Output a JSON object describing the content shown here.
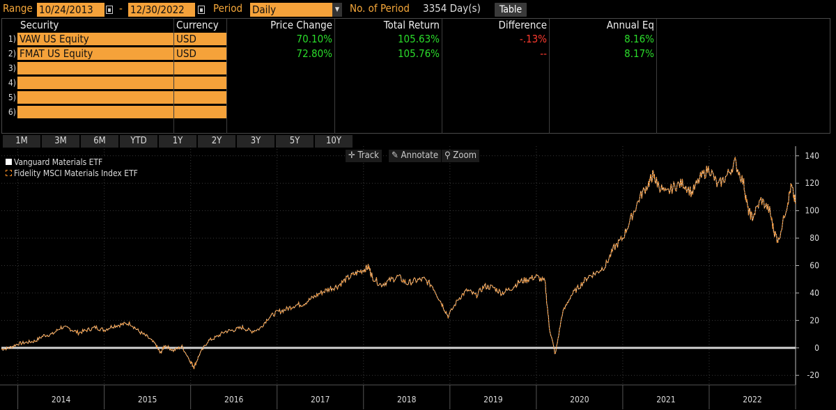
{
  "header": {
    "range_label": "Range",
    "start_date": "10/24/2013",
    "dash": "-",
    "end_date": "12/30/2022",
    "period_label": "Period",
    "period_value": "Daily",
    "num_period_label": "No. of Period",
    "num_period_value": "3354 Day(s)",
    "table_button": "Table"
  },
  "table": {
    "columns": [
      "Security",
      "Currency",
      "Price Change",
      "Total Return",
      "Difference",
      "Annual Eq"
    ],
    "rows": [
      {
        "num": "1)",
        "security": "VAW US Equity",
        "currency": "USD",
        "price_change": "70.10%",
        "total_return": "105.63%",
        "difference": "-.13%",
        "annual_eq": "8.16%"
      },
      {
        "num": "2)",
        "security": "FMAT US Equity",
        "currency": "USD",
        "price_change": "72.80%",
        "total_return": "105.76%",
        "difference": "--",
        "annual_eq": "8.17%"
      },
      {
        "num": "3)",
        "security": "",
        "currency": ""
      },
      {
        "num": "4)",
        "security": "",
        "currency": ""
      },
      {
        "num": "5)",
        "security": "",
        "currency": ""
      },
      {
        "num": "6)",
        "security": "",
        "currency": ""
      }
    ]
  },
  "periods": [
    "1M",
    "3M",
    "6M",
    "YTD",
    "1Y",
    "2Y",
    "3Y",
    "5Y",
    "10Y"
  ],
  "chart_toolbar": {
    "track": "Track",
    "track_icon": "crosshair-icon",
    "annotate": "Annotate",
    "annotate_icon": "pencil-icon",
    "zoom": "Zoom",
    "zoom_icon": "magnifier-icon"
  },
  "colors": {
    "accent_orange": "#f5a23a",
    "positive_green": "#2bdc2b",
    "negative_red": "#ff3b2f",
    "series_vaw": "#ffffff",
    "series_fmat": "#f08a24"
  },
  "chart_data": {
    "type": "line",
    "legend_position": "top-left",
    "grid": true,
    "ylim": [
      -27,
      147
    ],
    "y_ticks": [
      140,
      120,
      100,
      80,
      60,
      40,
      20,
      0,
      -20
    ],
    "x_year_labels": [
      "2014",
      "2015",
      "2016",
      "2017",
      "2018",
      "2019",
      "2020",
      "2021",
      "2022"
    ],
    "x_range": [
      2013.81,
      2023.0
    ],
    "baseline": 0,
    "series": [
      {
        "name": "Vanguard Materials ETF",
        "x": [
          2013.81,
          2013.9,
          2014.0,
          2014.1,
          2014.2,
          2014.3,
          2014.4,
          2014.5,
          2014.6,
          2014.7,
          2014.8,
          2014.9,
          2015.0,
          2015.1,
          2015.2,
          2015.3,
          2015.4,
          2015.5,
          2015.6,
          2015.65,
          2015.7,
          2015.8,
          2015.9,
          2016.0,
          2016.04,
          2016.1,
          2016.2,
          2016.3,
          2016.4,
          2016.5,
          2016.6,
          2016.7,
          2016.8,
          2016.9,
          2017.0,
          2017.1,
          2017.2,
          2017.3,
          2017.4,
          2017.5,
          2017.6,
          2017.7,
          2017.8,
          2017.9,
          2018.0,
          2018.06,
          2018.1,
          2018.2,
          2018.3,
          2018.4,
          2018.5,
          2018.6,
          2018.7,
          2018.8,
          2018.9,
          2018.98,
          2019.1,
          2019.2,
          2019.3,
          2019.4,
          2019.5,
          2019.6,
          2019.7,
          2019.8,
          2019.9,
          2020.0,
          2020.1,
          2020.15,
          2020.22,
          2020.3,
          2020.4,
          2020.5,
          2020.6,
          2020.7,
          2020.8,
          2020.9,
          2021.0,
          2021.1,
          2021.2,
          2021.3,
          2021.35,
          2021.4,
          2021.5,
          2021.6,
          2021.7,
          2021.8,
          2021.9,
          2022.0,
          2022.1,
          2022.2,
          2022.3,
          2022.4,
          2022.45,
          2022.5,
          2022.6,
          2022.7,
          2022.75,
          2022.8,
          2022.9,
          2022.95,
          2023.0
        ],
        "values": [
          -1,
          0,
          3,
          4,
          5,
          9,
          10,
          15,
          14,
          11,
          13,
          15,
          13,
          16,
          17,
          18,
          12,
          8,
          2,
          -4,
          2,
          -2,
          1,
          -10,
          -14,
          -5,
          5,
          8,
          12,
          13,
          15,
          12,
          14,
          22,
          26,
          28,
          31,
          32,
          36,
          40,
          43,
          45,
          50,
          54,
          57,
          59,
          52,
          46,
          49,
          52,
          47,
          49,
          50,
          45,
          33,
          23,
          36,
          42,
          38,
          45,
          44,
          40,
          43,
          48,
          50,
          52,
          48,
          15,
          -5,
          25,
          38,
          45,
          52,
          55,
          60,
          73,
          80,
          95,
          110,
          120,
          126,
          120,
          112,
          118,
          120,
          113,
          124,
          131,
          118,
          125,
          135,
          120,
          100,
          95,
          108,
          100,
          85,
          78,
          104,
          118,
          105
        ]
      },
      {
        "name": "Fidelity MSCI Materials Index ETF",
        "x": [
          2013.81,
          2013.9,
          2014.0,
          2014.1,
          2014.2,
          2014.3,
          2014.4,
          2014.5,
          2014.6,
          2014.7,
          2014.8,
          2014.9,
          2015.0,
          2015.1,
          2015.2,
          2015.3,
          2015.4,
          2015.5,
          2015.6,
          2015.65,
          2015.7,
          2015.8,
          2015.9,
          2016.0,
          2016.04,
          2016.1,
          2016.2,
          2016.3,
          2016.4,
          2016.5,
          2016.6,
          2016.7,
          2016.8,
          2016.9,
          2017.0,
          2017.1,
          2017.2,
          2017.3,
          2017.4,
          2017.5,
          2017.6,
          2017.7,
          2017.8,
          2017.9,
          2018.0,
          2018.06,
          2018.1,
          2018.2,
          2018.3,
          2018.4,
          2018.5,
          2018.6,
          2018.7,
          2018.8,
          2018.9,
          2018.98,
          2019.1,
          2019.2,
          2019.3,
          2019.4,
          2019.5,
          2019.6,
          2019.7,
          2019.8,
          2019.9,
          2020.0,
          2020.1,
          2020.15,
          2020.22,
          2020.3,
          2020.4,
          2020.5,
          2020.6,
          2020.7,
          2020.8,
          2020.9,
          2021.0,
          2021.1,
          2021.2,
          2021.3,
          2021.35,
          2021.4,
          2021.5,
          2021.6,
          2021.7,
          2021.8,
          2021.9,
          2022.0,
          2022.1,
          2022.2,
          2022.3,
          2022.4,
          2022.45,
          2022.5,
          2022.6,
          2022.7,
          2022.75,
          2022.8,
          2022.9,
          2022.95,
          2023.0
        ],
        "values": [
          -1,
          0,
          3,
          4,
          5,
          9,
          10,
          15,
          14,
          11,
          13,
          15,
          13,
          16,
          17,
          18,
          12,
          8,
          2,
          -4,
          2,
          -2,
          1,
          -10,
          -14,
          -5,
          5,
          8,
          12,
          13,
          15,
          12,
          14,
          22,
          26,
          28,
          31,
          32,
          36,
          40,
          43,
          45,
          50,
          54,
          57,
          59,
          52,
          46,
          49,
          52,
          47,
          49,
          50,
          45,
          33,
          23,
          36,
          42,
          38,
          45,
          44,
          40,
          43,
          48,
          50,
          52,
          48,
          15,
          -5,
          25,
          38,
          45,
          52,
          55,
          60,
          73,
          80,
          95,
          110,
          120,
          126,
          120,
          112,
          118,
          120,
          113,
          124,
          131,
          118,
          125,
          135,
          120,
          100,
          95,
          108,
          100,
          85,
          78,
          104,
          118,
          105
        ]
      }
    ]
  }
}
